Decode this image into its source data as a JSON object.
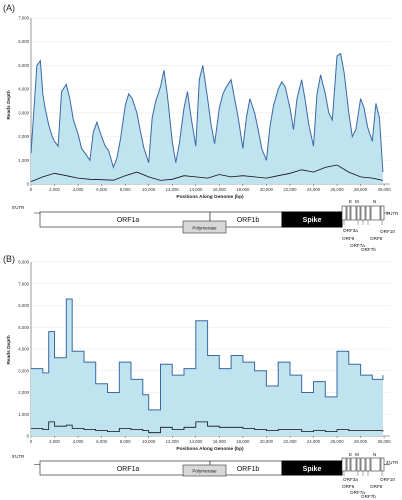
{
  "panels": [
    {
      "label": "(A)",
      "y_ticks": [
        "0",
        "1,000",
        "2,000",
        "3,000",
        "4,000",
        "5,000",
        "6,000",
        "7,000"
      ],
      "x_ticks": [
        "0",
        "2,000",
        "4,000",
        "6,000",
        "8,000",
        "10,000",
        "12,000",
        "14,000",
        "16,000",
        "18,000",
        "20,000",
        "22,000",
        "24,000",
        "26,000",
        "28,000",
        "30,000"
      ],
      "ylabel": "Reads Depth",
      "xlabel": "Positions Along Genome (bp)"
    },
    {
      "label": "(B)",
      "y_ticks": [
        "0",
        "1,000",
        "2,000",
        "3,000",
        "4,000",
        "5,000",
        "6,000",
        "7,000",
        "8,000"
      ],
      "x_ticks": [
        "0",
        "2,000",
        "4,000",
        "6,000",
        "8,000",
        "10,000",
        "12,000",
        "14,000",
        "16,000",
        "18,000",
        "20,000",
        "22,000",
        "24,000",
        "26,000",
        "28,000",
        "30,000"
      ],
      "ylabel": "Reads Depth",
      "xlabel": "Positions Along Genome (bp)"
    }
  ],
  "genome_map": {
    "utr5": "5'UTR",
    "utr3": "3'UTR",
    "orf1a": "ORF1a",
    "orf1b": "ORF1b",
    "polymerase": "Polymerase",
    "spike": "Spike",
    "E": "E",
    "M": "M",
    "N": "N",
    "orf3a": "ORF3a",
    "orf6": "ORF6",
    "orf7a": "ORF7a",
    "orf7b": "ORF7b",
    "orf8": "ORF8",
    "orf10": "ORF10"
  },
  "colors": {
    "fill": "#bfe3ef",
    "line": "#3b68a6",
    "black_line": "#111111",
    "spike_fill": "#000000"
  },
  "chart_data": [
    {
      "type": "area",
      "title": "",
      "xlabel": "Positions Along Genome (bp)",
      "ylabel": "Reads Depth",
      "xlim": [
        0,
        30500
      ],
      "ylim": [
        0,
        7000
      ],
      "series": [
        {
          "x": [
            0,
            500,
            800,
            1000,
            1200,
            1500,
            1800,
            2000,
            2300,
            2600,
            3000,
            3300,
            3600,
            4000,
            4300,
            4600,
            5000,
            5300,
            5600,
            6000,
            6300,
            6600,
            7000,
            7300,
            7600,
            8000,
            8300,
            8600,
            9000,
            9300,
            9600,
            10000,
            10300,
            10600,
            11000,
            11300,
            11600,
            12000,
            12300,
            12600,
            13000,
            13300,
            13600,
            14000,
            14300,
            14600,
            15000,
            15300,
            15600,
            16000,
            16300,
            16600,
            17000,
            17300,
            17600,
            18000,
            18300,
            18600,
            19000,
            19300,
            19600,
            20000,
            20300,
            20600,
            21000,
            21300,
            21600,
            22000,
            22300,
            22600,
            23000,
            23300,
            23600,
            24000,
            24300,
            24600,
            25000,
            25300,
            25600,
            26000,
            26300,
            26600,
            27000,
            27300,
            27600,
            28000,
            28300,
            28600,
            29000,
            29300,
            29600,
            29900
          ],
          "values": [
            1300,
            5000,
            5200,
            3800,
            3200,
            2500,
            2000,
            1800,
            1600,
            3900,
            4200,
            3600,
            2700,
            2100,
            1500,
            1300,
            1000,
            2200,
            2600,
            2000,
            1600,
            1400,
            700,
            1100,
            1900,
            3300,
            3800,
            3600,
            3000,
            2200,
            1500,
            900,
            2800,
            3500,
            4100,
            4800,
            3700,
            1800,
            900,
            1700,
            3200,
            3900,
            2800,
            1600,
            4400,
            5000,
            3600,
            2500,
            1700,
            3200,
            3800,
            4100,
            4400,
            3600,
            2800,
            1500,
            2800,
            3600,
            3000,
            2300,
            1500,
            1000,
            2400,
            3300,
            4000,
            4300,
            4100,
            3200,
            2300,
            3600,
            4400,
            3500,
            2500,
            1600,
            3800,
            4600,
            3800,
            3000,
            2700,
            5400,
            5500,
            4700,
            3000,
            2000,
            2300,
            3600,
            3200,
            2400,
            1800,
            3400,
            2800,
            500
          ]
        },
        {
          "name": "",
          "x": [
            0,
            1000,
            2000,
            3000,
            4000,
            5000,
            6000,
            7000,
            8000,
            9000,
            10000,
            11000,
            12000,
            13000,
            14000,
            15000,
            16000,
            17000,
            18000,
            19000,
            20000,
            21000,
            22000,
            23000,
            24000,
            25000,
            26000,
            27000,
            28000,
            29000,
            29900
          ],
          "values": [
            100,
            300,
            450,
            350,
            250,
            200,
            180,
            160,
            350,
            500,
            300,
            150,
            200,
            350,
            300,
            250,
            400,
            300,
            350,
            300,
            250,
            350,
            450,
            600,
            500,
            700,
            800,
            500,
            300,
            250,
            150
          ]
        }
      ]
    },
    {
      "type": "area",
      "title": "",
      "xlabel": "Positions Along Genome (bp)",
      "ylabel": "Reads Depth",
      "xlim": [
        0,
        30500
      ],
      "ylim": [
        0,
        8000
      ],
      "series": [
        {
          "x": [
            0,
            1000,
            1500,
            2000,
            3000,
            3500,
            4500,
            5500,
            6500,
            7500,
            8500,
            9500,
            10000,
            11000,
            12000,
            13000,
            14000,
            15000,
            16000,
            17000,
            18000,
            19000,
            20000,
            21000,
            22000,
            23000,
            24000,
            25000,
            26000,
            27000,
            28000,
            29000,
            29900
          ],
          "values": [
            3100,
            2900,
            4800,
            3600,
            6300,
            3900,
            3400,
            2400,
            2000,
            3400,
            2600,
            1900,
            1200,
            3300,
            2800,
            3100,
            5300,
            3700,
            3100,
            3700,
            3400,
            3000,
            2300,
            3400,
            2800,
            2000,
            2500,
            1800,
            3900,
            3300,
            2800,
            2600,
            2800
          ]
        },
        {
          "name": "",
          "x": [
            0,
            1000,
            1500,
            2000,
            3000,
            3500,
            4500,
            5500,
            6500,
            7500,
            8500,
            9500,
            10000,
            11000,
            12000,
            13000,
            14000,
            15000,
            16000,
            17000,
            18000,
            19000,
            20000,
            21000,
            22000,
            23000,
            24000,
            25000,
            26000,
            27000,
            28000,
            29000,
            29900
          ],
          "values": [
            350,
            300,
            650,
            450,
            500,
            350,
            300,
            250,
            200,
            350,
            300,
            250,
            150,
            400,
            300,
            400,
            650,
            450,
            400,
            400,
            350,
            300,
            250,
            300,
            300,
            200,
            250,
            200,
            300,
            250,
            250,
            250,
            200
          ]
        }
      ]
    }
  ]
}
